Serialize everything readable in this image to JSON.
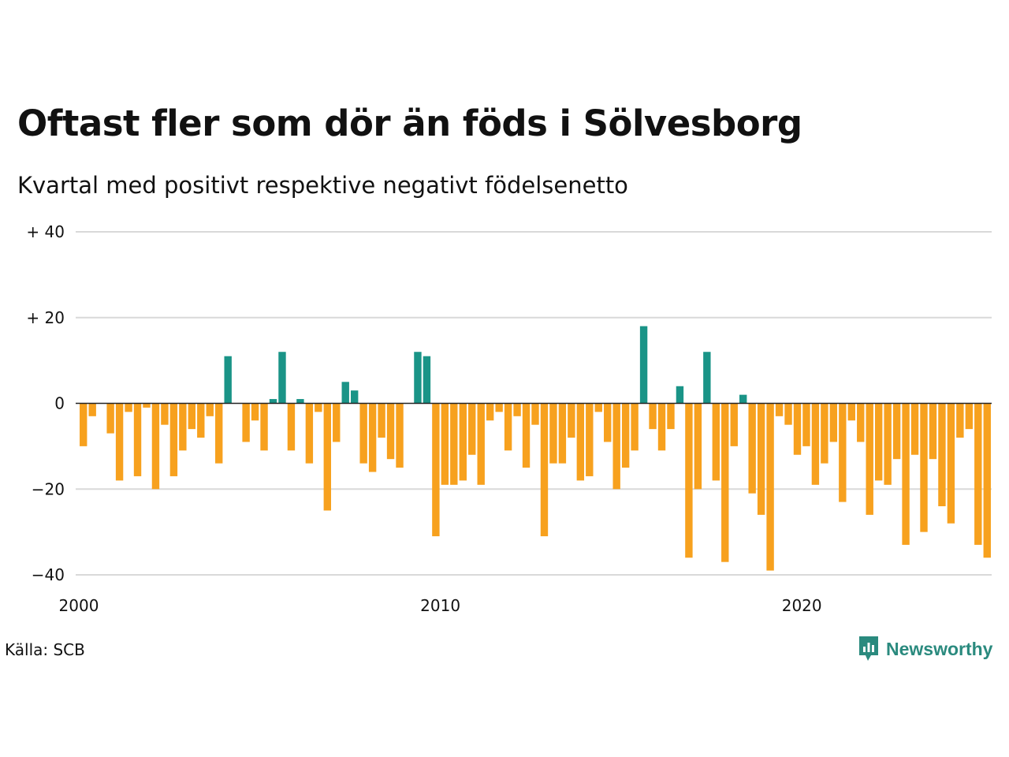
{
  "title": "Oftast fler som dör än föds i Sölvesborg",
  "subtitle": "Kvartal med positivt respektive negativt födelsenetto",
  "source": "Källa: SCB",
  "brand": "Newsworthy",
  "colors": {
    "positive": "#1a9487",
    "negative": "#f7a11e",
    "grid": "#d9d9d9",
    "zero": "#222222",
    "brand": "#2a8a7e"
  },
  "chart_data": {
    "type": "bar",
    "x_start_year": 2000,
    "ylim": [
      -40,
      40
    ],
    "yticks": [
      40,
      20,
      0,
      -20,
      -40
    ],
    "ytick_labels": [
      "+ 40",
      "+ 20",
      "0",
      "−20",
      "−40"
    ],
    "xtick_labels": [
      "2000",
      "2010",
      "2020"
    ],
    "grid": true,
    "values": [
      -10,
      -3,
      0,
      -7,
      -18,
      -2,
      -17,
      -1,
      -20,
      -5,
      -17,
      -11,
      -6,
      -8,
      -3,
      -14,
      11,
      0,
      -9,
      -4,
      -11,
      1,
      12,
      -11,
      1,
      -14,
      -2,
      -25,
      -9,
      5,
      3,
      -14,
      -16,
      -8,
      -13,
      -15,
      0,
      12,
      11,
      -31,
      -19,
      -19,
      -18,
      -12,
      -19,
      -4,
      -2,
      -11,
      -3,
      -15,
      -5,
      -31,
      -14,
      -14,
      -8,
      -18,
      -17,
      -2,
      -9,
      -20,
      -15,
      -11,
      18,
      -6,
      -11,
      -6,
      4,
      -36,
      -20,
      12,
      -18,
      -37,
      -10,
      2,
      -21,
      -26,
      -39,
      -3,
      -5,
      -12,
      -10,
      -19,
      -14,
      -9,
      -23,
      -4,
      -9,
      -26,
      -18,
      -19,
      -13,
      -33,
      -12,
      -30,
      -13,
      -24,
      -28,
      -8,
      -6,
      -33,
      -36
    ]
  }
}
